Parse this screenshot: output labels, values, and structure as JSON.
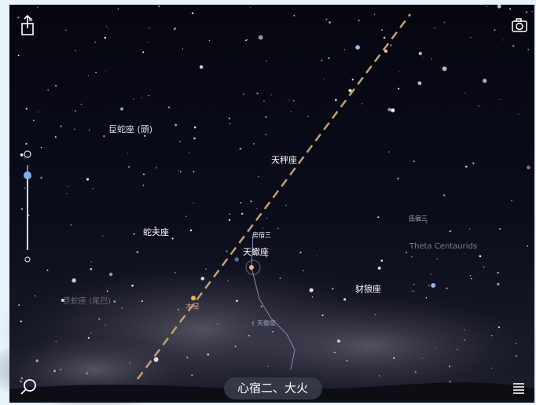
{
  "constellation_labels": [
    "巨蛇座 (頭)",
    "天秤座",
    "蛇夫座",
    "天蠍座",
    "豺狼座",
    "巨蛇座 (尾巴)"
  ],
  "star_labels": [
    "房宿三",
    "木星",
    "ε 天蠍座",
    "氐宿三"
  ],
  "meteor_shower_label": "Theta Centaurids",
  "selected_object": "心宿二、大火"
}
